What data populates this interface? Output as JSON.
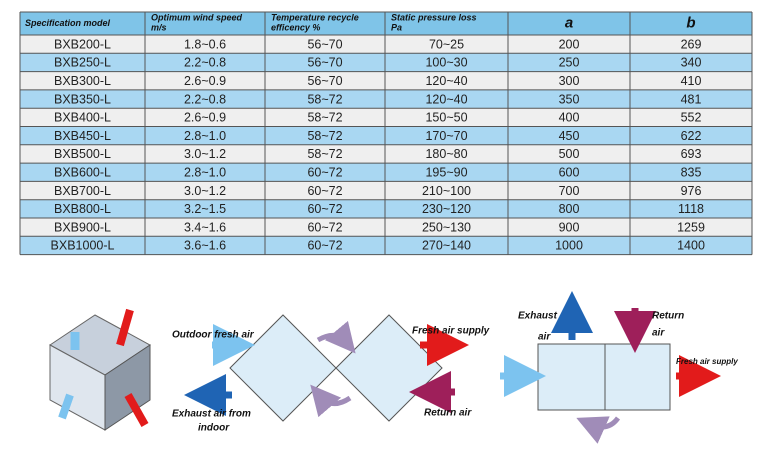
{
  "table": {
    "headers": [
      [
        "Specification model"
      ],
      [
        "Optimum wind speed",
        "m/s"
      ],
      [
        "Temperature recycle",
        "efficency %"
      ],
      [
        "Static pressure loss",
        "Pa"
      ],
      [
        "a"
      ],
      [
        "b"
      ]
    ],
    "rows": [
      [
        "BXB200-L",
        "1.8~0.6",
        "56~70",
        "70~25",
        "200",
        "269"
      ],
      [
        "BXB250-L",
        "2.2~0.8",
        "56~70",
        "100~30",
        "250",
        "340"
      ],
      [
        "BXB300-L",
        "2.6~0.9",
        "56~70",
        "120~40",
        "300",
        "410"
      ],
      [
        "BXB350-L",
        "2.2~0.8",
        "58~72",
        "120~40",
        "350",
        "481"
      ],
      [
        "BXB400-L",
        "2.6~0.9",
        "58~72",
        "150~50",
        "400",
        "552"
      ],
      [
        "BXB450-L",
        "2.8~1.0",
        "58~72",
        "170~70",
        "450",
        "622"
      ],
      [
        "BXB500-L",
        "3.0~1.2",
        "58~72",
        "180~80",
        "500",
        "693"
      ],
      [
        "BXB600-L",
        "2.8~1.0",
        "60~72",
        "195~90",
        "600",
        "835"
      ],
      [
        "BXB700-L",
        "3.0~1.2",
        "60~72",
        "210~100",
        "700",
        "976"
      ],
      [
        "BXB800-L",
        "3.2~1.5",
        "60~72",
        "230~120",
        "800",
        "1118"
      ],
      [
        "BXB900-L",
        "3.4~1.6",
        "60~72",
        "250~130",
        "900",
        "1259"
      ],
      [
        "BXB1000-L",
        "3.6~1.6",
        "60~72",
        "270~140",
        "1000",
        "1400"
      ]
    ]
  },
  "diagram": {
    "left_labels": {
      "outdoor": "Outdoor fresh air",
      "supply": "Fresh air supply",
      "exhaust": [
        "Exhaust air from",
        "indoor"
      ],
      "return": "Return air"
    },
    "right_labels": {
      "exhaust": [
        "Exhaust",
        "air"
      ],
      "return": [
        "Return",
        "air"
      ],
      "supply": "Fresh air supply"
    }
  }
}
